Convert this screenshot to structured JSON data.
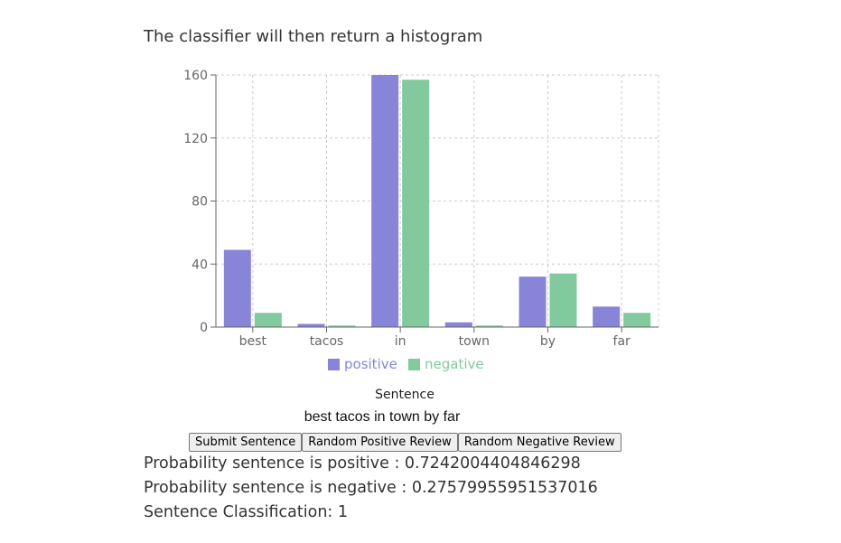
{
  "heading": "The classifier will then return a histogram",
  "chart_data": {
    "type": "bar",
    "categories": [
      "best",
      "tacos",
      "in",
      "town",
      "by",
      "far"
    ],
    "series": [
      {
        "name": "positive",
        "values": [
          49,
          2,
          160,
          3,
          32,
          13
        ],
        "color": "#8884d8"
      },
      {
        "name": "negative",
        "values": [
          9,
          1,
          157,
          1,
          34,
          9
        ],
        "color": "#82ca9d"
      }
    ],
    "yticks": [
      0,
      40,
      80,
      120,
      160
    ],
    "ylim": [
      0,
      160
    ],
    "grid": true,
    "legend_position": "bottom"
  },
  "form": {
    "sentence_label": "Sentence",
    "sentence_value": "best tacos in town by far",
    "submit_label": "Submit Sentence",
    "random_positive_label": "Random Positive Review",
    "random_negative_label": "Random Negative Review"
  },
  "results": {
    "positive": "Probability sentence is positive : 0.7242004404846298",
    "negative": "Probability sentence is negative : 0.27579955951537016",
    "classification": "Sentence Classification: 1"
  }
}
